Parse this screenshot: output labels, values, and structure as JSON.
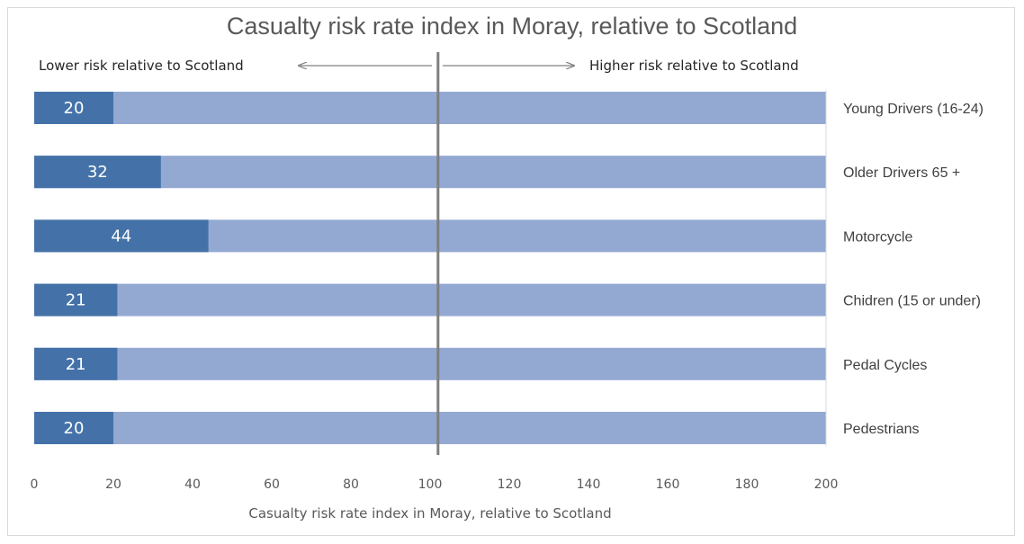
{
  "chart_data": {
    "type": "bar",
    "orientation": "horizontal",
    "title": "Casualty risk rate index in Moray, relative to Scotland",
    "xlabel": "Casualty risk rate index in Moray, relative to Scotland",
    "ylabel": "",
    "xlim": [
      0,
      200
    ],
    "xticks": [
      0,
      20,
      40,
      60,
      80,
      100,
      120,
      140,
      160,
      180,
      200
    ],
    "categories": [
      "Young Drivers (16-24)",
      "Older Drivers 65 +",
      "Motorcycle",
      "Chidren (15 or under)",
      "Pedal Cycles",
      "Pedestrians"
    ],
    "values": [
      20,
      32,
      44,
      21,
      21,
      20
    ],
    "background_max": 200,
    "reference_line": 102,
    "annotations": {
      "left": "Lower risk relative to Scotland",
      "right": "Higher risk relative to Scotland"
    },
    "colors": {
      "value_bar": "#4472a8",
      "background_bar": "#93a9d2",
      "reference_line": "#7f7f7f"
    },
    "grid": false,
    "legend": "none"
  }
}
